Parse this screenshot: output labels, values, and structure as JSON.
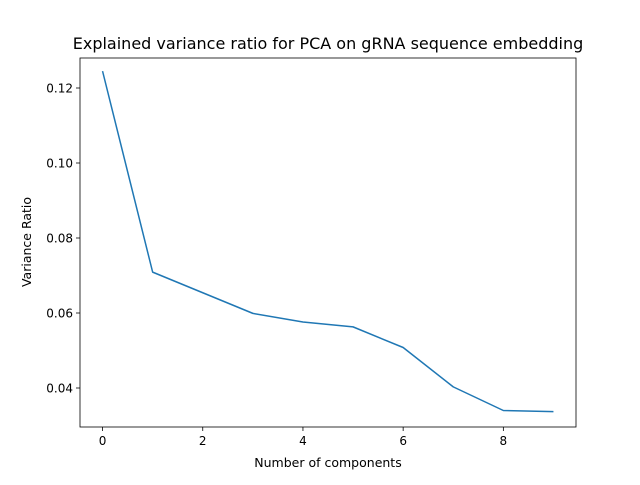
{
  "chart_data": {
    "type": "line",
    "title": "Explained variance ratio for PCA on gRNA sequence embedding",
    "xlabel": "Number of components",
    "ylabel": "Variance Ratio",
    "xlim": [
      -0.45,
      9.45
    ],
    "ylim": [
      0.0296,
      0.128
    ],
    "xticks": [
      0,
      2,
      4,
      6,
      8
    ],
    "yticks": [
      0.04,
      0.06,
      0.08,
      0.1,
      0.12
    ],
    "xtick_labels": [
      "0",
      "2",
      "4",
      "6",
      "8"
    ],
    "ytick_labels": [
      "0.04",
      "0.06",
      "0.08",
      "0.10",
      "0.12"
    ],
    "grid": false,
    "series": [
      {
        "color": "#1f77b4",
        "x": [
          0,
          1,
          2,
          3,
          4,
          5,
          6,
          7,
          8,
          9
        ],
        "y": [
          0.1245,
          0.0709,
          0.0654,
          0.0599,
          0.0576,
          0.0563,
          0.0508,
          0.0403,
          0.034,
          0.0337
        ]
      }
    ]
  }
}
